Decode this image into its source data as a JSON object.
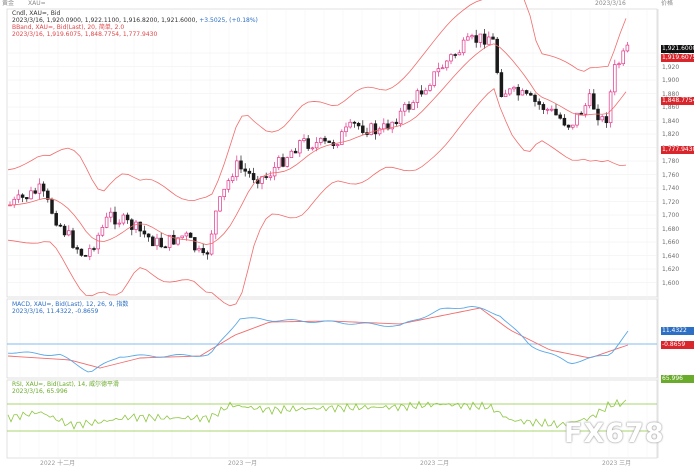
{
  "top_bar": {
    "left_label": "黄金",
    "symbol": "XAU=",
    "right_date": "2023/3/16",
    "right_label": "价格"
  },
  "main_panel": {
    "line1": "Cndl, XAU=, Bid",
    "line2_prefix": "2023/3/16, 1,920.0900, 1,922.1100, 1,916.8200, 1,921.6000, ",
    "line2_change": "+3.5025, (+0.18%)",
    "line3": "BBand, XAU=, Bid(Last), 20, 简单, 2.0",
    "line4": "2023/3/16, 1,919.6075, 1,848.7754, 1,777.9430",
    "y_ticks": [
      "1,940",
      "1,920",
      "1,900",
      "1,880",
      "1,860",
      "1,840",
      "1,820",
      "1,800",
      "1,780",
      "1,760",
      "1,740",
      "1,720",
      "1,700",
      "1,680",
      "1,660",
      "1,640",
      "1,620",
      "1,600"
    ],
    "price_tag": "1,921.6000",
    "upper_tag": "1,919.6075",
    "mid_tag": "1,848.7754",
    "lower_tag": "1,777.9430"
  },
  "macd_panel": {
    "line1": "MACD, XAU=, Bid(Last), 12, 26, 9, 指数",
    "line2": "2023/3/16, 11.4322, -0.8659",
    "tag_macd": "11.4322",
    "tag_signal": "-0.8659"
  },
  "rsi_panel": {
    "line1": "RSI, XAU=, Bid(Last), 14, 威尔德平滑",
    "line2": "2023/3/16, 65.996",
    "tag": "65.996"
  },
  "x_axis": {
    "labels": [
      "2022 十二月",
      "2023 一月",
      "2023 二月",
      "2023 三月"
    ]
  },
  "watermark": "FX678",
  "colors": {
    "bull": "#e0348a",
    "bear": "#1a1a1a",
    "band": "#f26b6b",
    "macd": "#5aa8e6",
    "signal": "#f26b6b",
    "rsi": "#8cc63f",
    "tag_red": "#d9262c",
    "tag_blue": "#2d6fc4",
    "tag_green": "#6aab2b",
    "tag_black": "#111111"
  },
  "chart_data": {
    "type": "candlestick",
    "note_units": "USD/oz",
    "ylim": [
      1600,
      1950
    ],
    "bbands": {
      "upper_last": 1919.6075,
      "middle_last": 1848.7754,
      "lower_last": 1777.943
    },
    "last_close": 1921.6,
    "macd_last": 11.4322,
    "signal_last": -0.8659,
    "rsi_last": 65.996
  }
}
